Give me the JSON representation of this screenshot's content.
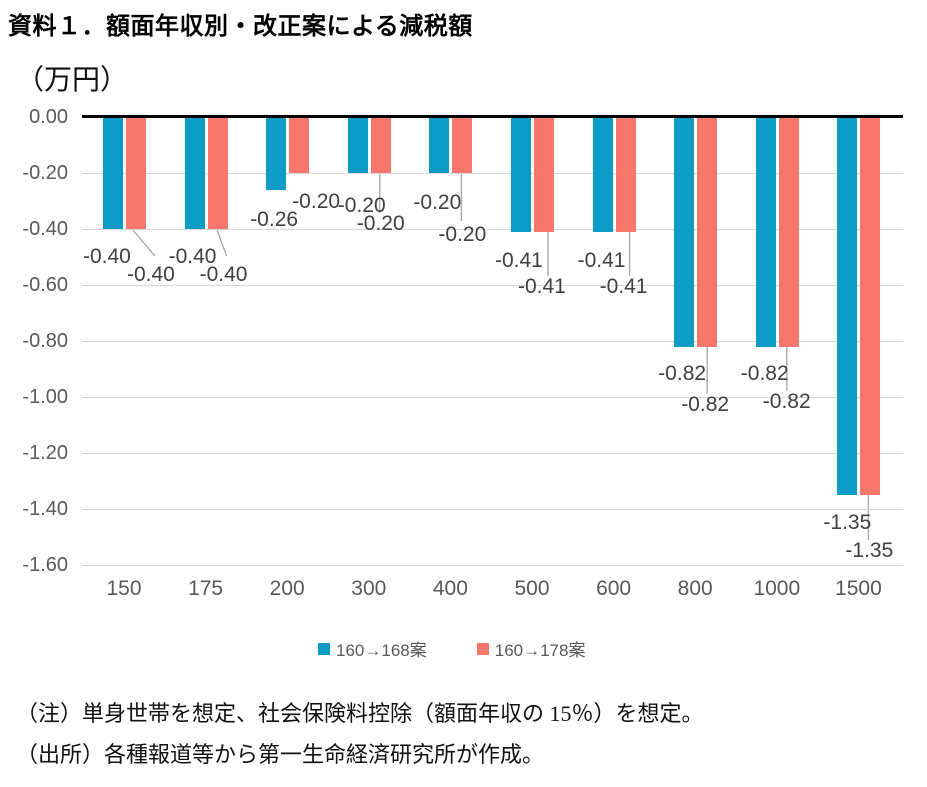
{
  "chart_data": {
    "type": "bar",
    "title": "資料１．額面年収別・改正案による減税額",
    "unit_label": "（万円）",
    "categories": [
      "150",
      "175",
      "200",
      "300",
      "400",
      "500",
      "600",
      "800",
      "1000",
      "1500"
    ],
    "series": [
      {
        "name": "160→168案",
        "color": "#0D9CC6",
        "values": [
          -0.4,
          -0.4,
          -0.26,
          -0.2,
          -0.2,
          -0.41,
          -0.41,
          -0.82,
          -0.82,
          -1.35
        ],
        "labels": [
          "-0.40",
          "-0.40",
          "-0.26",
          "-0.20",
          "-0.20",
          "-0.41",
          "-0.41",
          "-0.82",
          "-0.82",
          "-1.35"
        ]
      },
      {
        "name": "160→178案",
        "color": "#F8776C",
        "values": [
          -0.4,
          -0.4,
          -0.2,
          -0.2,
          -0.2,
          -0.41,
          -0.41,
          -0.82,
          -0.82,
          -1.35
        ],
        "labels": [
          "-0.40",
          "-0.40",
          "-0.20",
          "-0.20",
          "-0.20",
          "-0.41",
          "-0.41",
          "-0.82",
          "-0.82",
          "-1.35"
        ]
      }
    ],
    "ylim": [
      -1.6,
      0.0
    ],
    "ytick_step": 0.2,
    "yticks": [
      "0.00",
      "-0.20",
      "-0.40",
      "-0.60",
      "-0.80",
      "-1.00",
      "-1.20",
      "-1.40",
      "-1.60"
    ],
    "grid": true,
    "legend_position": "bottom",
    "xlabel": "",
    "ylabel": "（万円）"
  },
  "colors": {
    "series1": "#0D9CC6",
    "series2": "#F8776C",
    "gridline": "#D9D9D9",
    "zero_line": "#000000",
    "axis_text": "#595959",
    "data_label": "#404040",
    "leader_line": "#A6A6A6"
  },
  "notes": {
    "note": "（注）単身世帯を想定、社会保険料控除（額面年収の 15％）を想定。",
    "source": "（出所）各種報道等から第一生命経済研究所が作成。"
  }
}
